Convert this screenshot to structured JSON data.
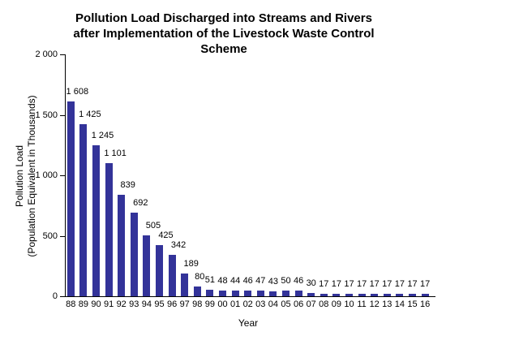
{
  "chart_data": {
    "type": "bar",
    "title": "Pollution Load Discharged into Streams and Rivers after Implementation of the Livestock Waste Control Scheme",
    "title_lines": [
      "Pollution Load Discharged into Streams and Rivers",
      "after Implementation of the Livestock Waste Control",
      "Scheme"
    ],
    "xlabel": "Year",
    "ylabel": "Pollution Load (Population Equivalent in Thousands)",
    "ylabel_lines": [
      "Pollution Load",
      "(Population Equivalent in Thousands)"
    ],
    "categories": [
      "88",
      "89",
      "90",
      "91",
      "92",
      "93",
      "94",
      "95",
      "96",
      "97",
      "98",
      "99",
      "00",
      "01",
      "02",
      "03",
      "04",
      "05",
      "06",
      "07",
      "08",
      "09",
      "10",
      "11",
      "12",
      "13",
      "14",
      "15",
      "16"
    ],
    "values": [
      1608,
      1425,
      1245,
      1101,
      839,
      692,
      505,
      425,
      342,
      189,
      80,
      51,
      48,
      44,
      46,
      47,
      43,
      50,
      46,
      30,
      17,
      17,
      17,
      17,
      17,
      17,
      17,
      17,
      17
    ],
    "ylim": [
      0,
      2000
    ],
    "y_ticks": [
      0,
      500,
      1000,
      1500,
      2000
    ],
    "bar_color": "#333399",
    "axis_color": "#000000",
    "data_labels": true,
    "grid": false,
    "legend": "none",
    "thousands_separator": " "
  }
}
